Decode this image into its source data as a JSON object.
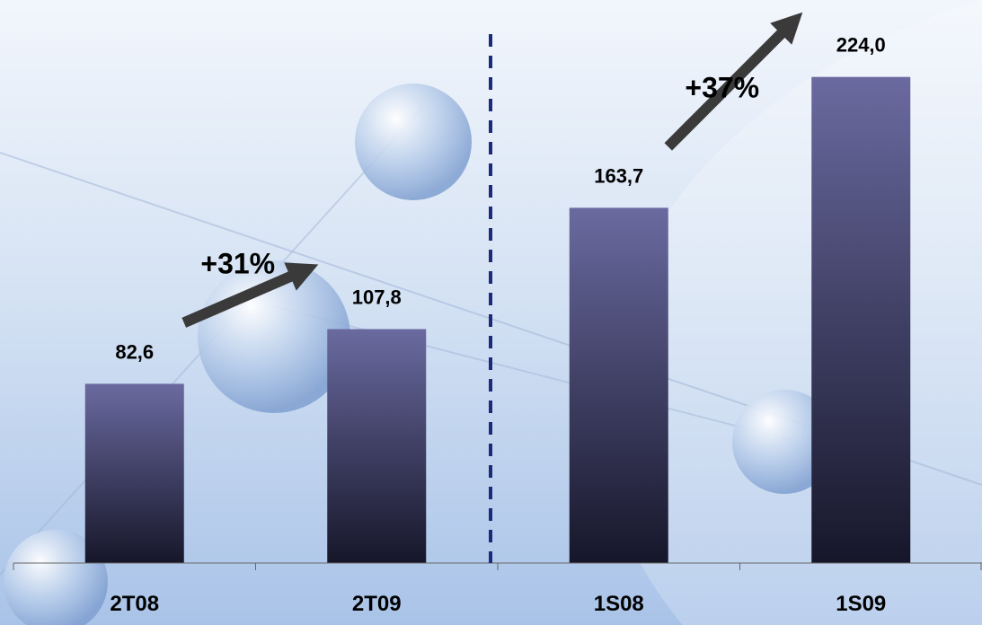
{
  "chart_data": {
    "type": "bar",
    "categories": [
      "2T08",
      "2T09",
      "1S08",
      "1S09"
    ],
    "values": [
      82.6,
      107.8,
      163.7,
      224.0
    ],
    "data_labels": [
      "82,6",
      "107,8",
      "163,7",
      "224,0"
    ],
    "annotations": [
      {
        "text": "+31%",
        "from": "2T08",
        "to": "2T09"
      },
      {
        "text": "+37%",
        "from": "1S08",
        "to": "1S09"
      }
    ],
    "ylim": [
      0,
      240
    ],
    "grid": false,
    "legend": "none",
    "divider_between": [
      "2T09",
      "1S08"
    ]
  },
  "colors": {
    "bar_top": "#6a6aa0",
    "bar_bottom": "#16162a",
    "divider": "#1c2a7a",
    "arrow": "#3a3a3a",
    "axis": "#666666"
  }
}
